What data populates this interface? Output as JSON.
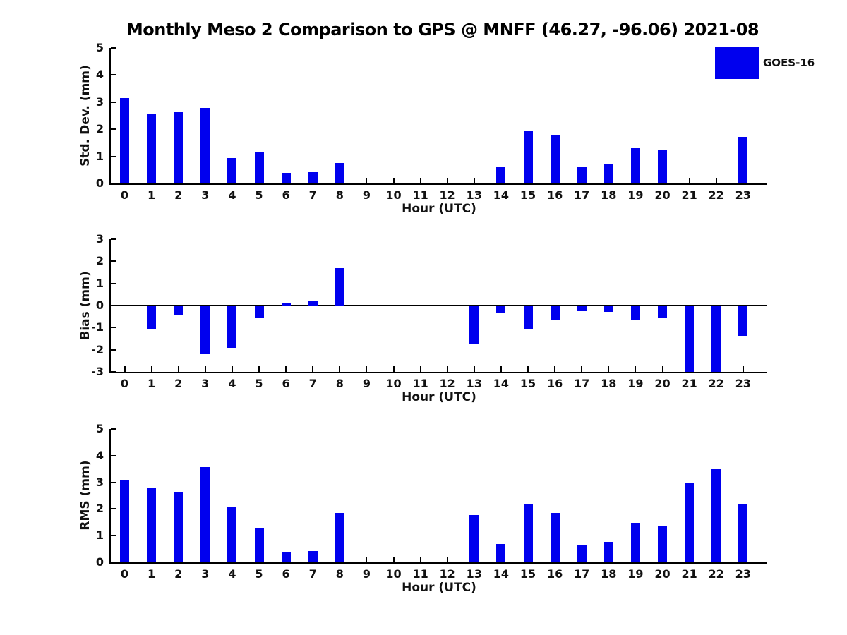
{
  "chart_data": {
    "type": "bar",
    "title": "Monthly Meso 2 Comparison to GPS @ MNFF (46.27, -96.06) 2021-08",
    "bar_color": "#0000ee",
    "legend": {
      "label": "GOES-16",
      "color": "#0000ee",
      "position": "top-right"
    },
    "categories": [
      0,
      1,
      2,
      3,
      4,
      5,
      6,
      7,
      8,
      9,
      10,
      11,
      12,
      13,
      14,
      15,
      16,
      17,
      18,
      19,
      20,
      21,
      22,
      23
    ],
    "grid": "off",
    "panels": [
      {
        "name": "std_dev",
        "ylabel": "Std. Dev. (mm)",
        "xlabel": "Hour (UTC)",
        "ylim": [
          0,
          5
        ],
        "yticks": [
          0,
          1,
          2,
          3,
          4,
          5
        ],
        "values": [
          3.15,
          2.55,
          2.62,
          2.78,
          0.95,
          1.15,
          0.38,
          0.41,
          0.75,
          0,
          0,
          0,
          0,
          0,
          0.63,
          1.95,
          1.78,
          0.62,
          0.7,
          1.3,
          1.25,
          0,
          0,
          1.72
        ]
      },
      {
        "name": "bias",
        "ylabel": "Bias (mm)",
        "xlabel": "Hour (UTC)",
        "ylim": [
          -3,
          3
        ],
        "yticks": [
          3,
          2,
          1,
          0,
          -1,
          -2,
          -3
        ],
        "values": [
          0,
          -1.08,
          -0.43,
          -2.2,
          -1.9,
          -0.57,
          0.08,
          0.2,
          1.7,
          0,
          0,
          0,
          0,
          -1.75,
          -0.35,
          -1.07,
          -0.63,
          -0.25,
          -0.3,
          -0.68,
          -0.57,
          -3.0,
          -3.0,
          -1.38
        ]
      },
      {
        "name": "rms",
        "ylabel": "RMS (mm)",
        "xlabel": "Hour (UTC)",
        "ylim": [
          0,
          5
        ],
        "yticks": [
          0,
          1,
          2,
          3,
          4,
          5
        ],
        "values": [
          3.1,
          2.78,
          2.65,
          3.57,
          2.08,
          1.3,
          0.38,
          0.42,
          1.85,
          0,
          0,
          0,
          0,
          1.77,
          0.7,
          2.2,
          1.85,
          0.65,
          0.78,
          1.47,
          1.37,
          2.95,
          3.5,
          2.2
        ]
      }
    ]
  }
}
